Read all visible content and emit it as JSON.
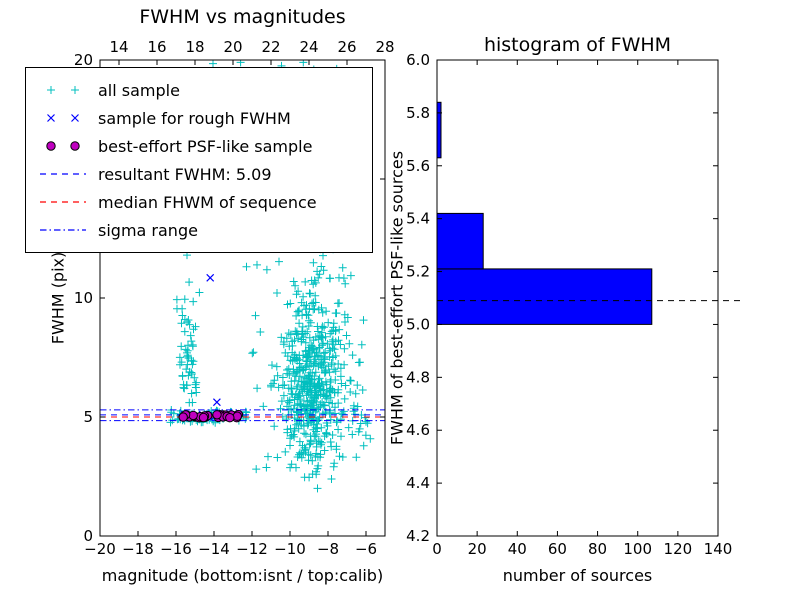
{
  "chart_data": [
    {
      "type": "scatter",
      "title": "FWHM vs magnitudes",
      "xlabel": "magnitude (bottom:isnt / top:calib)",
      "ylabel": "FWHM (pix)",
      "xlim": [
        -20,
        -5
      ],
      "ylim": [
        0,
        20
      ],
      "top_xlim": [
        13,
        28
      ],
      "xticks": [
        -20,
        -18,
        -16,
        -14,
        -12,
        -10,
        -8,
        -6
      ],
      "yticks": [
        0,
        5,
        10,
        15,
        20
      ],
      "top_xticks": [
        14,
        16,
        18,
        20,
        22,
        24,
        26,
        28
      ],
      "legend": [
        {
          "label": "all sample",
          "type": "marker",
          "marker": "plus",
          "color": "#00bfbf"
        },
        {
          "label": "sample for rough FWHM",
          "type": "marker",
          "marker": "x",
          "color": "#0000ff"
        },
        {
          "label": "best-effort PSF-like sample",
          "type": "marker",
          "marker": "circle",
          "color": "#bf00bf",
          "edge": "#000000"
        },
        {
          "label": "resultant FWHM: 5.09",
          "type": "line",
          "style": "dashed",
          "color": "#0000ff"
        },
        {
          "label": "median FHWM of sequence",
          "type": "line",
          "style": "dashed",
          "color": "#ff0000"
        },
        {
          "label": "sigma range",
          "type": "line",
          "style": "dashdot",
          "color": "#0000ff"
        }
      ],
      "lines": [
        {
          "name": "sigma-upper",
          "y": 5.3,
          "style": "dashdot",
          "color": "#0000ff"
        },
        {
          "name": "resultant-fwhm",
          "y": 5.09,
          "style": "dashed",
          "color": "#0000ff"
        },
        {
          "name": "median-fwhm",
          "y": 5.0,
          "style": "dashed",
          "color": "#ff0000"
        },
        {
          "name": "sigma-lower",
          "y": 4.85,
          "style": "dashdot",
          "color": "#0000ff"
        }
      ],
      "resultant_fwhm": 5.09,
      "series": [
        {
          "name": "all sample",
          "marker": "plus",
          "color": "#00bfbf",
          "seed": 7,
          "clusters": [
            {
              "n": 420,
              "x": [
                "normal",
                -8.85,
                0.75,
                -11.0,
                -6.2
              ],
              "y": [
                "normal",
                6.2,
                1.9,
                2.3,
                13.0
              ]
            },
            {
              "n": 140,
              "x": [
                "normal",
                -8.7,
                1.4,
                -11.9,
                -5.8
              ],
              "y": [
                "normal",
                7.5,
                3.2,
                2.0,
                16.5
              ]
            },
            {
              "n": 45,
              "x": [
                "normal",
                -8.8,
                0.55,
                -10.2,
                -7.2
              ],
              "y": [
                "uniform",
                13.0,
                19.9
              ]
            },
            {
              "n": 60,
              "x": [
                "normal",
                -15.35,
                0.28,
                -16.2,
                -14.75
              ],
              "y": [
                "normal",
                7.0,
                2.1,
                4.85,
                12.4
              ]
            },
            {
              "n": 85,
              "x": [
                "uniform",
                -16.3,
                -12.3
              ],
              "y": [
                "normal",
                5.03,
                0.13,
                4.6,
                5.5
              ]
            },
            {
              "n": 22,
              "x": [
                "uniform",
                -7.7,
                -5.75
              ],
              "y": [
                "normal",
                4.9,
                0.75,
                3.2,
                6.5
              ]
            },
            {
              "n": 10,
              "x": [
                "uniform",
                -12.3,
                -11.0
              ],
              "y": [
                "uniform",
                4.5,
                11.5
              ]
            }
          ],
          "points": [
            [
              -8.55,
              2.0
            ],
            [
              -14.05,
              19.85
            ],
            [
              -12.6,
              19.9
            ],
            [
              -10.45,
              19.75
            ],
            [
              -9.3,
              19.9
            ],
            [
              -8.75,
              19.6
            ],
            [
              -13.1,
              13.3
            ],
            [
              -15.4,
              12.2
            ],
            [
              -6.0,
              4.8
            ]
          ]
        },
        {
          "name": "sample for rough FWHM",
          "marker": "x",
          "color": "#0000ff",
          "seed": 3,
          "points": [
            [
              -14.2,
              10.85
            ],
            [
              -13.85,
              5.62
            ],
            [
              -15.55,
              5.1
            ],
            [
              -15.2,
              5.05
            ],
            [
              -14.9,
              5.0
            ],
            [
              -14.6,
              5.1
            ],
            [
              -14.3,
              5.05
            ],
            [
              -14.0,
              5.0
            ],
            [
              -13.7,
              5.08
            ],
            [
              -13.4,
              5.03
            ],
            [
              -13.1,
              5.06
            ],
            [
              -12.85,
              5.0
            ]
          ]
        },
        {
          "name": "best-effort PSF-like sample",
          "marker": "circle",
          "color": "#bf00bf",
          "edge_color": "#000000",
          "seed": 11,
          "clusters": [
            {
              "n": 30,
              "x": [
                "uniform",
                -15.7,
                -12.7
              ],
              "y": [
                "normal",
                5.05,
                0.05,
                4.96,
                5.16
              ]
            }
          ],
          "points": []
        }
      ]
    },
    {
      "type": "bar",
      "orientation": "horizontal",
      "title": "histogram of FWHM",
      "xlabel": "number of sources",
      "ylabel": "FWHM of best-effort PSF-like sources",
      "xlim": [
        0,
        140
      ],
      "ylim": [
        4.2,
        6.0
      ],
      "xticks": [
        0,
        20,
        40,
        60,
        80,
        100,
        120,
        140
      ],
      "yticks": [
        4.2,
        4.4,
        4.6,
        4.8,
        5.0,
        5.2,
        5.4,
        5.6,
        5.8,
        6.0
      ],
      "bar_color": "#0000ff",
      "edge_color": "#000000",
      "bins": [
        {
          "y0": 5.0,
          "y1": 5.21,
          "count": 107
        },
        {
          "y0": 5.21,
          "y1": 5.42,
          "count": 23
        },
        {
          "y0": 5.42,
          "y1": 5.63,
          "count": 0
        },
        {
          "y0": 5.63,
          "y1": 5.84,
          "count": 2
        }
      ],
      "annotation_line": {
        "y": 5.09,
        "style": "dashed",
        "color": "#000000",
        "x_end": 152
      }
    }
  ]
}
